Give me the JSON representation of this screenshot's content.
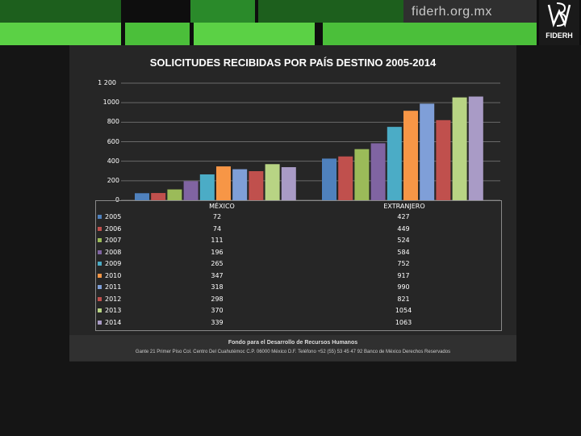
{
  "header": {
    "site": "fiderh.org.mx",
    "logo_text": "FIDERH"
  },
  "chart_data": {
    "type": "bar",
    "title": "SOLICITUDES RECIBIDAS POR PAÍS DESTINO 2005-2014",
    "categories": [
      "MÉXICO",
      "EXTRANJERO"
    ],
    "ylim": [
      0,
      1200
    ],
    "yticks": [
      "0",
      "200",
      "400",
      "600",
      "800",
      "1000",
      "1 200"
    ],
    "series": [
      {
        "name": "2005",
        "color": "#4f81bd",
        "values": [
          72,
          427
        ]
      },
      {
        "name": "2006",
        "color": "#c0504d",
        "values": [
          74,
          449
        ]
      },
      {
        "name": "2007",
        "color": "#9bbb59",
        "values": [
          111,
          524
        ]
      },
      {
        "name": "2008",
        "color": "#8064a2",
        "values": [
          196,
          584
        ]
      },
      {
        "name": "2009",
        "color": "#4bacc6",
        "values": [
          265,
          752
        ]
      },
      {
        "name": "2010",
        "color": "#f79646",
        "values": [
          347,
          917
        ]
      },
      {
        "name": "2011",
        "color": "#7f9fd8",
        "values": [
          318,
          990
        ]
      },
      {
        "name": "2012",
        "color": "#c0504d",
        "values": [
          298,
          821
        ]
      },
      {
        "name": "2013",
        "color": "#b8d484",
        "values": [
          370,
          1054
        ]
      },
      {
        "name": "2014",
        "color": "#a99bc6",
        "values": [
          339,
          1063
        ]
      }
    ],
    "table_rows": [
      [
        "72",
        "427"
      ],
      [
        "74",
        "449"
      ],
      [
        "111",
        "524"
      ],
      [
        "196",
        "584"
      ],
      [
        "265",
        "752"
      ],
      [
        "347",
        "917"
      ],
      [
        "318",
        "990"
      ],
      [
        "298",
        "821"
      ],
      [
        "370",
        "1054"
      ],
      [
        "339",
        "1063"
      ]
    ]
  },
  "footer": {
    "line1": "Fondo para el Desarrollo de Recursos Humanos",
    "line2": "Gante 21 Primer Piso Col. Centro Del Cuahutémoc C.P. 06000 México D.F. Teléfono +52 (55) 53 45 47 92 Banco de México Derechos Reservados"
  }
}
